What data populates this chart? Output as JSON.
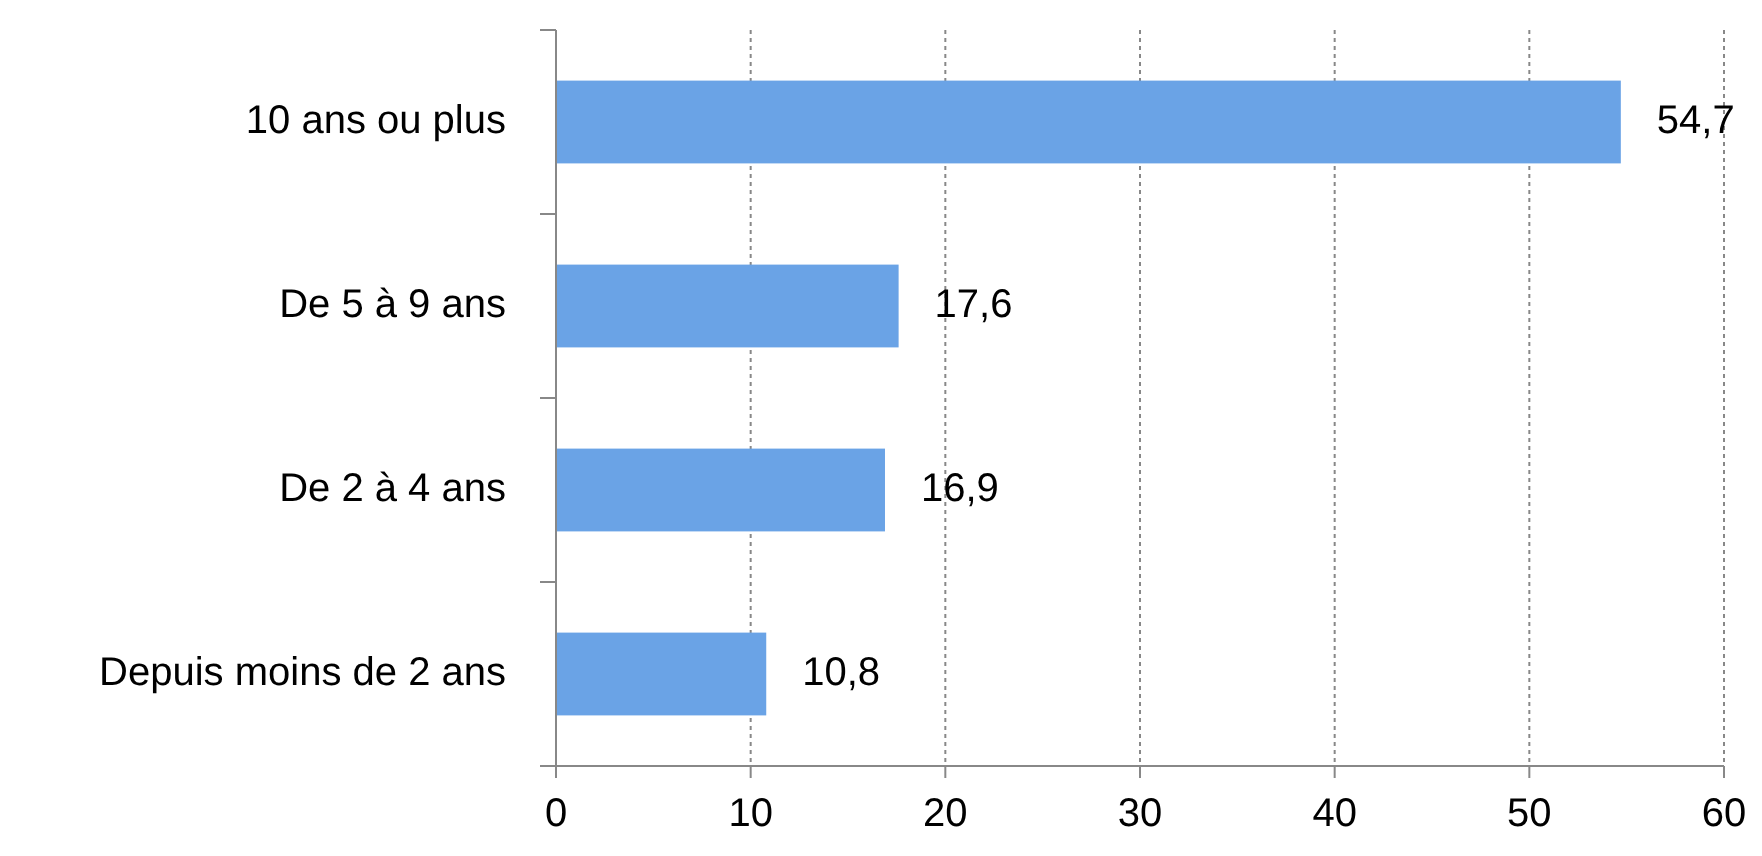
{
  "chart_data": {
    "type": "bar",
    "orientation": "horizontal",
    "categories": [
      "10 ans ou plus",
      "De 5 à 9 ans",
      "De 2 à 4 ans",
      "Depuis moins de 2 ans"
    ],
    "values": [
      54.7,
      17.6,
      16.9,
      10.8
    ],
    "value_labels": [
      "54,7",
      "17,6",
      "16,9",
      "10,8"
    ],
    "color": "#6aa3e6",
    "xlim": [
      0,
      60
    ],
    "xticks": [
      0,
      10,
      20,
      30,
      40,
      50,
      60
    ],
    "grid": "x",
    "line_style": "dotted"
  }
}
